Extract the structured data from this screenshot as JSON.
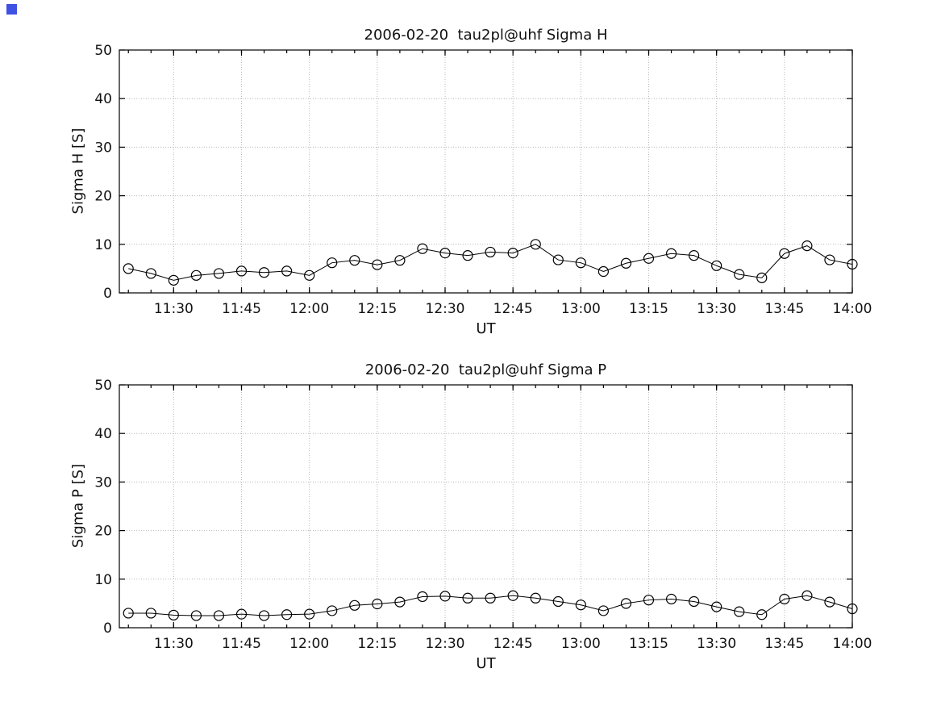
{
  "decor": {
    "corner_marker_color": "#3f51e3"
  },
  "chart_data": [
    {
      "type": "line",
      "title": "2006-02-20  tau2pl@uhf Sigma H",
      "xlabel": "UT",
      "ylabel": "Sigma H [S]",
      "ylim": [
        0,
        50
      ],
      "y_ticks": [
        0,
        10,
        20,
        30,
        40,
        50
      ],
      "x_ticks": [
        "11:30",
        "11:45",
        "12:00",
        "12:15",
        "12:30",
        "12:45",
        "13:00",
        "13:15",
        "13:30",
        "13:45",
        "14:00"
      ],
      "xlim": [
        "11:18",
        "14:00"
      ],
      "grid": true,
      "marker": "open-circle",
      "line_color": "#000000",
      "x": [
        "11:20",
        "11:25",
        "11:30",
        "11:35",
        "11:40",
        "11:45",
        "11:50",
        "11:55",
        "12:00",
        "12:05",
        "12:10",
        "12:15",
        "12:20",
        "12:25",
        "12:30",
        "12:35",
        "12:40",
        "12:45",
        "12:50",
        "12:55",
        "13:00",
        "13:05",
        "13:10",
        "13:15",
        "13:20",
        "13:25",
        "13:30",
        "13:35",
        "13:40",
        "13:45",
        "13:50",
        "13:55",
        "14:00"
      ],
      "values": [
        5.0,
        4.0,
        2.6,
        3.6,
        4.0,
        4.5,
        4.2,
        4.5,
        3.6,
        6.2,
        6.7,
        5.8,
        6.7,
        9.1,
        8.2,
        7.7,
        8.4,
        8.2,
        10.0,
        6.8,
        6.2,
        4.4,
        6.1,
        7.1,
        8.1,
        7.7,
        5.6,
        3.8,
        3.1,
        8.1,
        9.7,
        6.8,
        5.9
      ]
    },
    {
      "type": "line",
      "title": "2006-02-20  tau2pl@uhf Sigma P",
      "xlabel": "UT",
      "ylabel": "Sigma P [S]",
      "ylim": [
        0,
        50
      ],
      "y_ticks": [
        0,
        10,
        20,
        30,
        40,
        50
      ],
      "x_ticks": [
        "11:30",
        "11:45",
        "12:00",
        "12:15",
        "12:30",
        "12:45",
        "13:00",
        "13:15",
        "13:30",
        "13:45",
        "14:00"
      ],
      "xlim": [
        "11:18",
        "14:00"
      ],
      "grid": true,
      "marker": "open-circle",
      "line_color": "#000000",
      "x": [
        "11:20",
        "11:25",
        "11:30",
        "11:35",
        "11:40",
        "11:45",
        "11:50",
        "11:55",
        "12:00",
        "12:05",
        "12:10",
        "12:15",
        "12:20",
        "12:25",
        "12:30",
        "12:35",
        "12:40",
        "12:45",
        "12:50",
        "12:55",
        "13:00",
        "13:05",
        "13:10",
        "13:15",
        "13:20",
        "13:25",
        "13:30",
        "13:35",
        "13:40",
        "13:45",
        "13:50",
        "13:55",
        "14:00"
      ],
      "values": [
        3.0,
        3.0,
        2.6,
        2.5,
        2.5,
        2.8,
        2.5,
        2.7,
        2.8,
        3.5,
        4.6,
        4.9,
        5.3,
        6.4,
        6.5,
        6.1,
        6.1,
        6.6,
        6.1,
        5.4,
        4.7,
        3.5,
        5.0,
        5.7,
        5.9,
        5.4,
        4.3,
        3.3,
        2.7,
        5.9,
        6.6,
        5.3,
        3.9
      ]
    }
  ]
}
